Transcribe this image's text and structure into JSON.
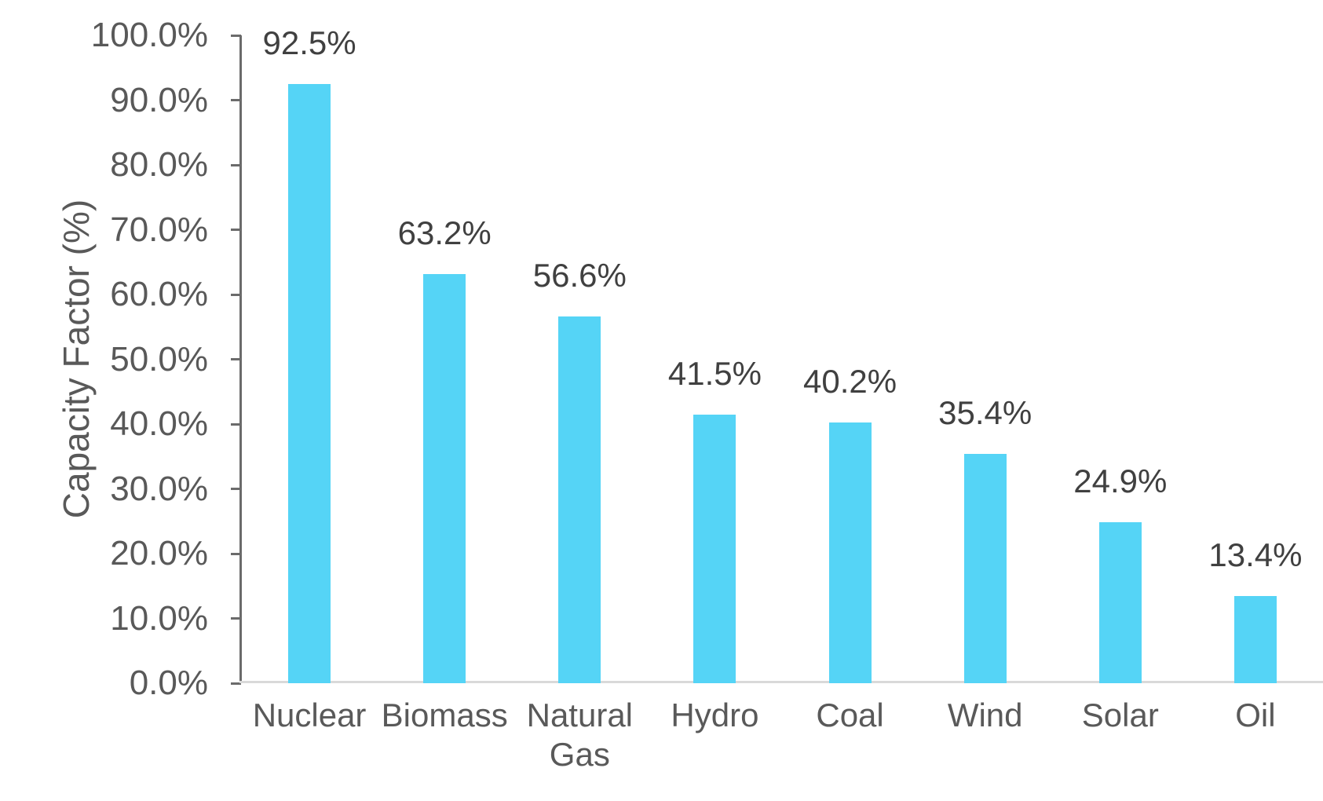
{
  "chart_data": {
    "type": "bar",
    "title": "",
    "xlabel": "",
    "ylabel": "Capacity Factor (%)",
    "categories": [
      "Nuclear",
      "Biomass",
      "Natural Gas",
      "Hydro",
      "Coal",
      "Wind",
      "Solar",
      "Oil"
    ],
    "values": [
      92.5,
      63.2,
      56.6,
      41.5,
      40.2,
      35.4,
      24.9,
      13.4
    ],
    "value_labels": [
      "92.5%",
      "63.2%",
      "56.6%",
      "41.5%",
      "40.2%",
      "35.4%",
      "24.9%",
      "13.4%"
    ],
    "ylim": [
      0,
      100
    ],
    "ytick_step": 10,
    "ytick_labels": [
      "100.0%",
      "90.0%",
      "80.0%",
      "70.0%",
      "60.0%",
      "50.0%",
      "40.0%",
      "30.0%",
      "20.0%",
      "10.0%",
      "0.0%"
    ],
    "grid": false,
    "legend": "none",
    "colors": {
      "bar": "#55D4F6",
      "axis_line": "#6B6B6B",
      "baseline": "#D9D9D9",
      "axis_text": "#595959",
      "value_text": "#404040"
    }
  }
}
